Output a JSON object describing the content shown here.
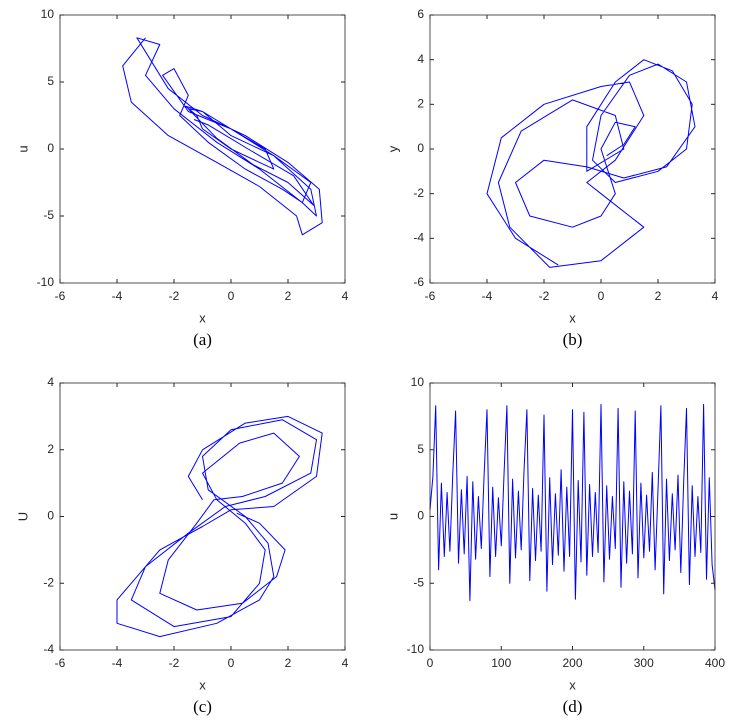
{
  "chart_data": [
    {
      "type": "line",
      "xlabel": "x",
      "ylabel": "u",
      "caption": "(a)",
      "color": "#0000ff",
      "xlim": [
        -6,
        4
      ],
      "ylim": [
        -10,
        10
      ],
      "xticks": [
        -6,
        -4,
        -2,
        0,
        2,
        4
      ],
      "yticks": [
        -10,
        -5,
        0,
        5,
        10
      ],
      "x": [
        -3,
        -3.8,
        -3.5,
        -2.2,
        -0.5,
        1,
        2.3,
        2.5,
        3.2,
        3.1,
        2,
        0.5,
        -1,
        -2.2,
        -3.3,
        -2.5,
        -3,
        -2,
        -0.5,
        1,
        2.5,
        3,
        2.8,
        1.5,
        0,
        -1.5,
        -2.4,
        -2,
        -1.5,
        -1.8,
        -0.8,
        0.5,
        1.8,
        2.5,
        2.8,
        1.5,
        0,
        -1,
        -1.6,
        -1.2,
        -1,
        0,
        1,
        1.5,
        1.2,
        0,
        -1,
        -1.5,
        -0.5,
        0.8,
        2,
        2.9,
        2.2,
        0.6,
        -0.8,
        -1.3
      ],
      "y": [
        8.3,
        6.2,
        3.5,
        1,
        -1,
        -2.8,
        -5,
        -6.4,
        -5.5,
        -3,
        -1,
        1,
        2.5,
        4.5,
        8.3,
        7.8,
        5.5,
        3,
        0.5,
        -1.5,
        -4,
        -5,
        -3,
        -0.5,
        1.5,
        2.8,
        5.5,
        6,
        4,
        2.5,
        0.5,
        -1.5,
        -3,
        -4,
        -2.5,
        -0.5,
        1,
        2.8,
        3.2,
        2.5,
        1.5,
        0,
        -1,
        -1.5,
        0,
        1.5,
        2.8,
        3,
        0.8,
        -1.2,
        -2.5,
        -4.2,
        -2,
        0,
        1.8,
        2.2
      ]
    },
    {
      "type": "line",
      "xlabel": "x",
      "ylabel": "y",
      "caption": "(b)",
      "color": "#0000ff",
      "xlim": [
        -6,
        4
      ],
      "ylim": [
        -6,
        6
      ],
      "xticks": [
        -6,
        -4,
        -2,
        0,
        2,
        4
      ],
      "yticks": [
        -6,
        -4,
        -2,
        0,
        2,
        4,
        6
      ],
      "x": [
        -1.5,
        -3,
        -4,
        -3.5,
        -2,
        0,
        1,
        1.5,
        0.5,
        -0.5,
        0,
        1.5,
        0,
        -1.8,
        -3.2,
        -3.6,
        -2.8,
        -1,
        0.5,
        0.8,
        -0.5,
        -0.5,
        0.5,
        1.5,
        2.5,
        3.2,
        3,
        2,
        0.5,
        -0.3,
        0,
        1,
        2,
        3,
        3.3,
        2.3,
        0.8,
        -0.5,
        -2,
        -3,
        -2.5,
        -1,
        0,
        0.5,
        0,
        0.5,
        1.2,
        0.8,
        0.2
      ],
      "y": [
        -5.2,
        -4,
        -2,
        0.5,
        2,
        2.8,
        3,
        1.5,
        -0.5,
        -1.5,
        -2,
        -3.5,
        -5,
        -5.3,
        -3.5,
        -1.5,
        0.8,
        2.2,
        1.5,
        0,
        -1,
        1,
        3,
        4,
        3.5,
        2,
        0,
        -1,
        -1.5,
        -0.5,
        1.5,
        3.3,
        3.8,
        3,
        1,
        -0.8,
        -1.3,
        -0.8,
        -0.5,
        -1.5,
        -3,
        -3.5,
        -3,
        -2,
        0,
        1.2,
        1,
        0.2,
        -0.3
      ]
    },
    {
      "type": "line",
      "xlabel": "x",
      "ylabel": "U",
      "caption": "(c)",
      "color": "#0000ff",
      "xlim": [
        -6,
        4
      ],
      "ylim": [
        -4,
        4
      ],
      "xticks": [
        -6,
        -4,
        -2,
        0,
        2,
        4
      ],
      "yticks": [
        -4,
        -2,
        0,
        2,
        4
      ],
      "x": [
        -1,
        -1.5,
        -1,
        0.5,
        2,
        3.2,
        3,
        1.5,
        0,
        -1,
        -2.5,
        -4,
        -4,
        -2.5,
        -0.5,
        1,
        1.5,
        1.3,
        0.5,
        -0.8,
        -1,
        0,
        1.8,
        3,
        2.8,
        1.2,
        -0.2,
        -1.5,
        -3,
        -3.5,
        -2,
        0,
        1,
        1.2,
        0.5,
        -0.5,
        -1,
        0.3,
        1.5,
        2.4,
        1.8,
        0.4,
        -0.6,
        -1.2,
        -2.2,
        -2.5,
        -1.2,
        0.4,
        1.6,
        1.9,
        1,
        0.2
      ],
      "y": [
        0.5,
        1.2,
        2,
        2.8,
        3,
        2.5,
        1.2,
        0.3,
        0.2,
        -0.3,
        -1,
        -2.5,
        -3.2,
        -3.6,
        -3.2,
        -2.5,
        -1.8,
        -0.8,
        0,
        0.8,
        1.8,
        2.6,
        2.9,
        2.3,
        1.3,
        0.6,
        0.3,
        -0.5,
        -1.5,
        -2.5,
        -3.3,
        -3,
        -2,
        -1,
        -0.2,
        0.5,
        1.3,
        2.2,
        2.5,
        1.8,
        1,
        0.6,
        0.5,
        -0.2,
        -1.3,
        -2.3,
        -2.8,
        -2.6,
        -1.8,
        -1,
        -0.2,
        0.1
      ]
    },
    {
      "type": "line",
      "xlabel": "x",
      "ylabel": "u",
      "caption": "(d)",
      "color": "#0000ff",
      "xlim": [
        0,
        400
      ],
      "ylim": [
        -10,
        10
      ],
      "xticks": [
        0,
        100,
        200,
        300,
        400
      ],
      "yticks": [
        -10,
        -5,
        0,
        5,
        10
      ],
      "x": [
        0,
        4,
        8,
        12,
        16,
        20,
        24,
        28,
        32,
        36,
        40,
        44,
        48,
        52,
        56,
        60,
        64,
        68,
        72,
        76,
        80,
        84,
        88,
        92,
        96,
        100,
        104,
        108,
        112,
        116,
        120,
        124,
        128,
        132,
        136,
        140,
        144,
        148,
        152,
        156,
        160,
        164,
        168,
        172,
        176,
        180,
        184,
        188,
        192,
        196,
        200,
        204,
        208,
        212,
        216,
        220,
        224,
        228,
        232,
        236,
        240,
        244,
        248,
        252,
        256,
        260,
        264,
        268,
        272,
        276,
        280,
        284,
        288,
        292,
        296,
        300,
        304,
        308,
        312,
        316,
        320,
        324,
        328,
        332,
        336,
        340,
        344,
        348,
        352,
        356,
        360,
        364,
        368,
        372,
        376,
        380,
        384,
        388,
        392,
        396,
        400
      ],
      "y": [
        0.5,
        3,
        8.3,
        -4,
        2.5,
        -3,
        1.8,
        -2.6,
        3.2,
        7.9,
        -3.5,
        2,
        -2.8,
        3,
        -6.3,
        2.6,
        -3.2,
        1.5,
        -2.4,
        3.1,
        8,
        -4.5,
        2.2,
        -3,
        1.4,
        -2.2,
        3.3,
        8.3,
        -5,
        2.8,
        -3.1,
        1.9,
        -2.5,
        3.4,
        8,
        -4.8,
        2.1,
        -3.3,
        1.6,
        -2.6,
        7.6,
        -5.6,
        2.9,
        -3.6,
        1.7,
        -2.9,
        3.5,
        -4.1,
        2.2,
        -3,
        8,
        -6.2,
        2.7,
        -3.4,
        7.8,
        -4.4,
        2.4,
        -3,
        1.8,
        -2.7,
        8.4,
        -4.9,
        2.3,
        -3.2,
        1.5,
        -2.4,
        8.1,
        -5.3,
        2.6,
        -3.5,
        1.9,
        -2.8,
        7.9,
        -4.6,
        2.5,
        -3.1,
        1.6,
        -2.6,
        3.3,
        -4,
        2,
        8.3,
        -5.8,
        2.8,
        -3.3,
        1.7,
        -2.5,
        3.1,
        -4.2,
        2.4,
        8.1,
        -5.1,
        2.3,
        -3,
        1.5,
        -2.7,
        8.4,
        -4.7,
        2.9,
        -3.6,
        -5.5
      ]
    }
  ]
}
